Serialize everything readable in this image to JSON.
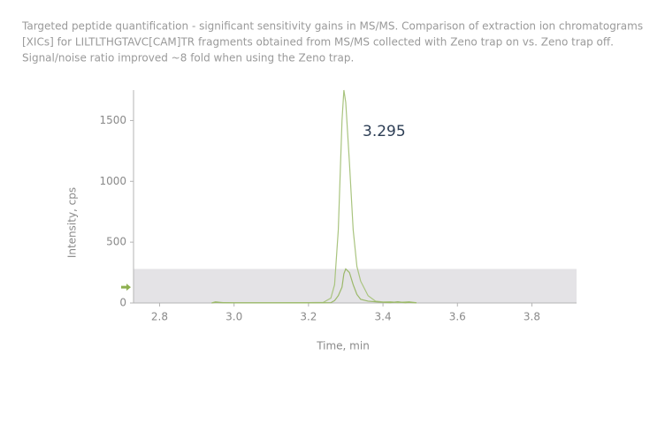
{
  "chart_data": {
    "type": "line",
    "caption": [
      "Targeted peptide quantification - significant sensitivity gains in MS/MS. Comparison of extraction ion chromatograms",
      "[XICs] for LILTLTHGTAVC[CAM]TR fragments obtained from MS/MS collected with Zeno trap on vs. Zeno trap off.",
      "Signal/noise ratio improved ~8 fold when using the Zeno trap."
    ],
    "annotation": "3.295",
    "xlabel": "Time, min",
    "ylabel": "Intensity, cps",
    "x": [
      2.94,
      2.95,
      2.97,
      3.0,
      3.1,
      3.2,
      3.24,
      3.26,
      3.27,
      3.28,
      3.29,
      3.295,
      3.3,
      3.31,
      3.32,
      3.33,
      3.34,
      3.36,
      3.38,
      3.4,
      3.42,
      3.44,
      3.46,
      3.47,
      3.49
    ],
    "series": [
      {
        "color": "#a9c47f",
        "values": [
          0,
          10,
          3,
          2,
          2,
          3,
          5,
          40,
          150,
          600,
          1500,
          1750,
          1650,
          1150,
          600,
          300,
          180,
          60,
          15,
          8,
          10,
          3,
          8,
          10,
          2
        ]
      },
      {
        "color": "#9bb86a",
        "values": [
          0,
          5,
          2,
          1,
          1,
          1,
          2,
          3,
          20,
          60,
          130,
          240,
          280,
          250,
          150,
          70,
          30,
          15,
          10,
          5,
          3,
          10,
          2,
          5,
          1
        ]
      }
    ],
    "highlight_ylim": [
      0,
      280
    ],
    "arrow_y": 130,
    "arrow_color": "#8db04f",
    "xlim": [
      2.73,
      3.92
    ],
    "ylim": [
      0,
      1750
    ],
    "xticks": [
      {
        "value": 2.8,
        "label": "2.8"
      },
      {
        "value": 3.0,
        "label": "3.0"
      },
      {
        "value": 3.2,
        "label": "3.2"
      },
      {
        "value": 3.4,
        "label": "3.4"
      },
      {
        "value": 3.6,
        "label": "3.6"
      },
      {
        "value": 3.8,
        "label": "3.8"
      }
    ],
    "yticks": [
      0,
      500,
      1000,
      1500
    ]
  }
}
